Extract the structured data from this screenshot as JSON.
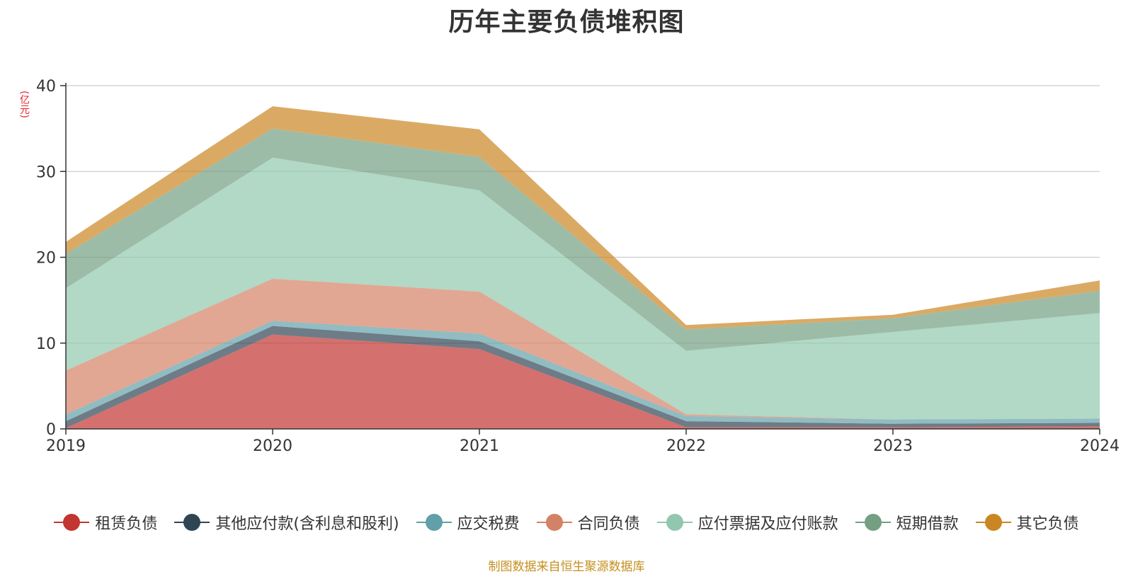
{
  "chart_data": {
    "type": "area",
    "stacked": true,
    "title": "历年主要负债堆积图",
    "ylabel": "(亿元)",
    "xlabel": "",
    "x": [
      "2019",
      "2020",
      "2021",
      "2022",
      "2023",
      "2024"
    ],
    "yticks": [
      "0",
      "10",
      "20",
      "30",
      "40"
    ],
    "ylim": [
      0,
      40
    ],
    "grid": true,
    "legend_position": "bottom",
    "series": [
      {
        "name": "租赁负债",
        "color": "#c23531",
        "values": [
          0.1,
          11.0,
          9.3,
          0.2,
          0.2,
          0.3
        ]
      },
      {
        "name": "其他应付款(含利息和股利)",
        "color": "#2f4554",
        "values": [
          0.8,
          1.0,
          0.9,
          0.7,
          0.4,
          0.4
        ]
      },
      {
        "name": "应交税费",
        "color": "#61a0a8",
        "values": [
          0.8,
          0.6,
          0.9,
          0.6,
          0.5,
          0.5
        ]
      },
      {
        "name": "合同负债",
        "color": "#d48265",
        "values": [
          5.1,
          4.9,
          4.9,
          0.2,
          0.0,
          0.0
        ]
      },
      {
        "name": "应付票据及应付账款",
        "color": "#91c7ae",
        "values": [
          9.6,
          14.1,
          11.8,
          7.4,
          10.2,
          12.3
        ]
      },
      {
        "name": "短期借款",
        "color": "#749f83",
        "values": [
          4.0,
          3.4,
          3.9,
          2.5,
          1.6,
          2.6
        ]
      },
      {
        "name": "其它负债",
        "color": "#ca8622",
        "values": [
          1.4,
          2.6,
          3.2,
          0.5,
          0.4,
          1.2
        ]
      }
    ]
  },
  "footer": {
    "source": "制图数据来自恒生聚源数据库"
  }
}
